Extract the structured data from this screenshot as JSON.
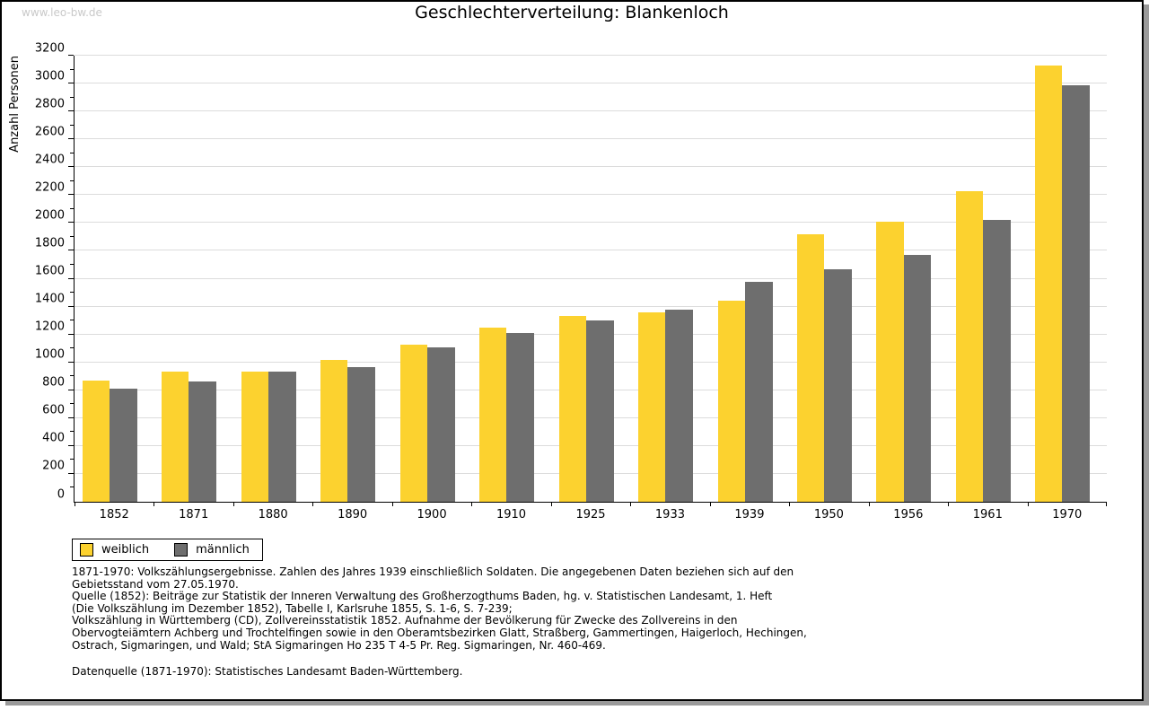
{
  "watermark": "www.leo-bw.de",
  "title": "Geschlechterverteilung: Blankenloch",
  "chart_data": {
    "type": "bar",
    "title": "Geschlechterverteilung: Blankenloch",
    "xlabel": "",
    "ylabel": "Anzahl Personen",
    "ylim": [
      0,
      3200
    ],
    "ytick_step": 200,
    "minor_tick_step": 100,
    "grid": true,
    "legend_position": "bottom-left",
    "categories": [
      "1852",
      "1871",
      "1880",
      "1890",
      "1900",
      "1910",
      "1925",
      "1933",
      "1939",
      "1950",
      "1956",
      "1961",
      "1970"
    ],
    "series": [
      {
        "name": "weiblich",
        "color": "#FCD22F",
        "values": [
          870,
          935,
          935,
          1015,
          1130,
          1250,
          1335,
          1360,
          1445,
          1920,
          2010,
          2230,
          3130
        ]
      },
      {
        "name": "männlich",
        "color": "#6E6E6E",
        "values": [
          810,
          860,
          935,
          965,
          1105,
          1210,
          1300,
          1380,
          1580,
          1670,
          1770,
          2020,
          2990
        ]
      }
    ]
  },
  "legend": {
    "items": [
      {
        "label": "weiblich",
        "color": "#FCD22F"
      },
      {
        "label": "männlich",
        "color": "#6E6E6E"
      }
    ]
  },
  "notes": {
    "lines": [
      "1871-1970: Volkszählungsergebnisse. Zahlen des Jahres 1939 einschließlich Soldaten. Die angegebenen Daten beziehen sich auf den",
      "Gebietsstand vom 27.05.1970.",
      "Quelle (1852): Beiträge zur Statistik der Inneren Verwaltung des Großherzogthums Baden, hg. v. Statistischen Landesamt, 1. Heft",
      "(Die Volkszählung im Dezember 1852), Tabelle I, Karlsruhe 1855, S. 1-6, S. 7-239;",
      "Volkszählung in Württemberg (CD), Zollvereinsstatistik 1852. Aufnahme der Bevölkerung für Zwecke des Zollvereins in den",
      "Obervogteiämtern Achberg und Trochtelfingen sowie in den Oberamtsbezirken Glatt, Straßberg, Gammertingen, Haigerloch, Hechingen,",
      "Ostrach, Sigmaringen, und Wald; StA Sigmaringen Ho 235 T 4-5 Pr. Reg. Sigmaringen, Nr. 460-469."
    ],
    "datenquelle": "Datenquelle (1871-1970): Statistisches Landesamt Baden-Württemberg."
  },
  "colors": {
    "weiblich": "#FCD22F",
    "maennlich": "#6E6E6E",
    "gridline": "#DCDCDC",
    "axis": "#000000",
    "watermark": "#C9C9C9",
    "frame_shadow": "#9A9A9A"
  }
}
